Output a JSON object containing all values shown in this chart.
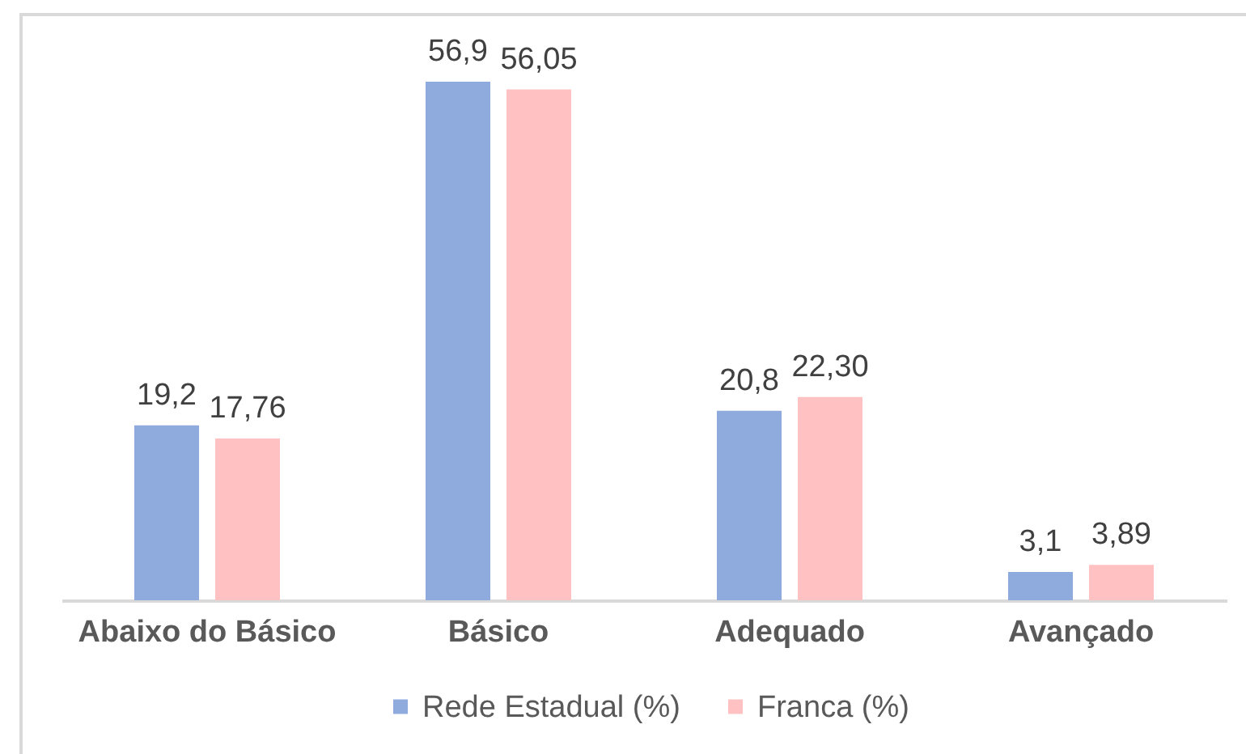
{
  "chart_data": {
    "type": "bar",
    "categories": [
      "Abaixo do Básico",
      "Básico",
      "Adequado",
      "Avançado"
    ],
    "series": [
      {
        "name": "Rede Estadual (%)",
        "color": "#8faadc",
        "values": [
          19.2,
          56.9,
          20.8,
          3.1
        ],
        "value_labels": [
          "19,2",
          "56,9",
          "20,8",
          "3,1"
        ]
      },
      {
        "name": "Franca (%)",
        "color": "#ffc1c1",
        "values": [
          17.76,
          56.05,
          22.3,
          3.89
        ],
        "value_labels": [
          "17,76",
          "56,05",
          "22,30",
          "3,89"
        ]
      }
    ],
    "legend": "bottom"
  }
}
